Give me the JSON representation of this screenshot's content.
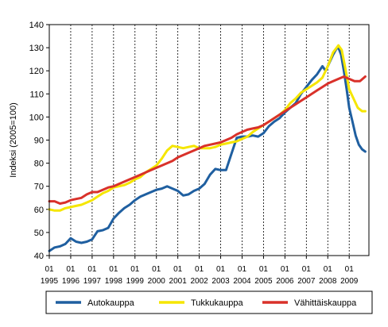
{
  "chart_data": {
    "type": "line",
    "title": "",
    "xlabel": "",
    "ylabel": "Indeksi (2005=100)",
    "ylim": [
      40,
      140
    ],
    "yticks": [
      40,
      50,
      60,
      70,
      80,
      90,
      100,
      110,
      120,
      130,
      140
    ],
    "xlim": [
      1995.0,
      2009.92
    ],
    "xticks": [
      {
        "x": 1995,
        "month": "01",
        "year": "1995"
      },
      {
        "x": 1996,
        "month": "01",
        "year": "1996"
      },
      {
        "x": 1997,
        "month": "01",
        "year": "1997"
      },
      {
        "x": 1998,
        "month": "01",
        "year": "1998"
      },
      {
        "x": 1999,
        "month": "01",
        "year": "1999"
      },
      {
        "x": 2000,
        "month": "01",
        "year": "2000"
      },
      {
        "x": 2001,
        "month": "01",
        "year": "2001"
      },
      {
        "x": 2002,
        "month": "01",
        "year": "2002"
      },
      {
        "x": 2003,
        "month": "01",
        "year": "2003"
      },
      {
        "x": 2004,
        "month": "01",
        "year": "2004"
      },
      {
        "x": 2005,
        "month": "01",
        "year": "2005"
      },
      {
        "x": 2006,
        "month": "01",
        "year": "2006"
      },
      {
        "x": 2007,
        "month": "01",
        "year": "2007"
      },
      {
        "x": 2008,
        "month": "01",
        "year": "2008"
      },
      {
        "x": 2009,
        "month": "01",
        "year": "2009"
      }
    ],
    "grid": "vertical dashed at each year",
    "legend_position": "bottom",
    "series": [
      {
        "name": "Autokauppa",
        "color": "#1f5fa0",
        "points": [
          [
            1995.0,
            42
          ],
          [
            1995.25,
            43.5
          ],
          [
            1995.5,
            44
          ],
          [
            1995.75,
            45
          ],
          [
            1996.0,
            47.5
          ],
          [
            1996.25,
            46
          ],
          [
            1996.5,
            45.5
          ],
          [
            1996.75,
            46
          ],
          [
            1997.0,
            47
          ],
          [
            1997.25,
            50.5
          ],
          [
            1997.5,
            51
          ],
          [
            1997.75,
            52
          ],
          [
            1998.0,
            56
          ],
          [
            1998.25,
            58.5
          ],
          [
            1998.5,
            60.5
          ],
          [
            1998.75,
            62
          ],
          [
            1999.0,
            64
          ],
          [
            1999.25,
            65.5
          ],
          [
            1999.5,
            66.5
          ],
          [
            1999.75,
            67.5
          ],
          [
            2000.0,
            68.5
          ],
          [
            2000.25,
            69
          ],
          [
            2000.5,
            70
          ],
          [
            2000.75,
            69
          ],
          [
            2001.0,
            68
          ],
          [
            2001.25,
            66
          ],
          [
            2001.5,
            66.5
          ],
          [
            2001.75,
            68
          ],
          [
            2002.0,
            69
          ],
          [
            2002.25,
            71
          ],
          [
            2002.5,
            75
          ],
          [
            2002.75,
            77.5
          ],
          [
            2003.0,
            77
          ],
          [
            2003.25,
            77
          ],
          [
            2003.5,
            84
          ],
          [
            2003.75,
            91
          ],
          [
            2004.0,
            91.5
          ],
          [
            2004.25,
            91.5
          ],
          [
            2004.5,
            92
          ],
          [
            2004.75,
            91.5
          ],
          [
            2005.0,
            93
          ],
          [
            2005.25,
            96
          ],
          [
            2005.5,
            98
          ],
          [
            2005.75,
            99.5
          ],
          [
            2006.0,
            102
          ],
          [
            2006.25,
            104
          ],
          [
            2006.5,
            106
          ],
          [
            2006.75,
            110
          ],
          [
            2007.0,
            113
          ],
          [
            2007.25,
            116
          ],
          [
            2007.5,
            118.5
          ],
          [
            2007.75,
            122
          ],
          [
            2007.9,
            120
          ],
          [
            2008.0,
            122
          ],
          [
            2008.25,
            127
          ],
          [
            2008.4,
            129.5
          ],
          [
            2008.5,
            130
          ],
          [
            2008.62,
            127
          ],
          [
            2008.75,
            120
          ],
          [
            2008.88,
            112
          ],
          [
            2009.0,
            104
          ],
          [
            2009.15,
            98
          ],
          [
            2009.3,
            92
          ],
          [
            2009.45,
            88
          ],
          [
            2009.6,
            86
          ],
          [
            2009.75,
            85
          ]
        ]
      },
      {
        "name": "Tukkukauppa",
        "color": "#f5e600",
        "points": [
          [
            1995.0,
            60
          ],
          [
            1995.25,
            59.5
          ],
          [
            1995.5,
            59.5
          ],
          [
            1995.75,
            60.5
          ],
          [
            1996.0,
            61
          ],
          [
            1996.25,
            61.5
          ],
          [
            1996.5,
            62
          ],
          [
            1996.75,
            63
          ],
          [
            1997.0,
            64
          ],
          [
            1997.25,
            65.5
          ],
          [
            1997.5,
            67
          ],
          [
            1997.75,
            68
          ],
          [
            1998.0,
            69.5
          ],
          [
            1998.25,
            70
          ],
          [
            1998.5,
            70.5
          ],
          [
            1998.75,
            71.5
          ],
          [
            1999.0,
            73
          ],
          [
            1999.25,
            74
          ],
          [
            1999.5,
            76
          ],
          [
            1999.75,
            77.5
          ],
          [
            2000.0,
            79
          ],
          [
            2000.25,
            82
          ],
          [
            2000.5,
            85.5
          ],
          [
            2000.75,
            87.5
          ],
          [
            2001.0,
            87
          ],
          [
            2001.25,
            86.5
          ],
          [
            2001.5,
            87
          ],
          [
            2001.75,
            87.5
          ],
          [
            2002.0,
            86.5
          ],
          [
            2002.25,
            86.5
          ],
          [
            2002.5,
            86.5
          ],
          [
            2002.75,
            87
          ],
          [
            2003.0,
            88
          ],
          [
            2003.25,
            88.5
          ],
          [
            2003.5,
            89
          ],
          [
            2003.75,
            89.5
          ],
          [
            2004.0,
            90.5
          ],
          [
            2004.25,
            91.5
          ],
          [
            2004.5,
            93.5
          ],
          [
            2004.75,
            95
          ],
          [
            2005.0,
            96.5
          ],
          [
            2005.25,
            98
          ],
          [
            2005.5,
            99.5
          ],
          [
            2005.75,
            101
          ],
          [
            2006.0,
            103
          ],
          [
            2006.25,
            106
          ],
          [
            2006.5,
            108
          ],
          [
            2006.75,
            110.5
          ],
          [
            2007.0,
            112
          ],
          [
            2007.25,
            113.5
          ],
          [
            2007.5,
            115
          ],
          [
            2007.75,
            117
          ],
          [
            2008.0,
            122
          ],
          [
            2008.25,
            128
          ],
          [
            2008.5,
            131
          ],
          [
            2008.65,
            129
          ],
          [
            2008.8,
            122
          ],
          [
            2009.0,
            112
          ],
          [
            2009.2,
            108
          ],
          [
            2009.4,
            104
          ],
          [
            2009.6,
            102.5
          ],
          [
            2009.75,
            102.5
          ]
        ]
      },
      {
        "name": "Vähittäiskauppa",
        "color": "#d9312a",
        "points": [
          [
            1995.0,
            63.5
          ],
          [
            1995.25,
            63.5
          ],
          [
            1995.5,
            62.5
          ],
          [
            1995.75,
            63
          ],
          [
            1996.0,
            64
          ],
          [
            1996.25,
            64.5
          ],
          [
            1996.5,
            65
          ],
          [
            1996.75,
            66.5
          ],
          [
            1997.0,
            67.5
          ],
          [
            1997.25,
            67.5
          ],
          [
            1997.5,
            68.5
          ],
          [
            1997.75,
            69.5
          ],
          [
            1998.0,
            70
          ],
          [
            1998.25,
            71
          ],
          [
            1998.5,
            72
          ],
          [
            1998.75,
            73
          ],
          [
            1999.0,
            74
          ],
          [
            1999.25,
            75
          ],
          [
            1999.5,
            76
          ],
          [
            1999.75,
            77
          ],
          [
            2000.0,
            78
          ],
          [
            2000.25,
            79
          ],
          [
            2000.5,
            80
          ],
          [
            2000.75,
            81
          ],
          [
            2001.0,
            82.5
          ],
          [
            2001.25,
            83.5
          ],
          [
            2001.5,
            84.5
          ],
          [
            2001.75,
            85.5
          ],
          [
            2002.0,
            86.5
          ],
          [
            2002.25,
            87.5
          ],
          [
            2002.5,
            88
          ],
          [
            2002.75,
            88.5
          ],
          [
            2003.0,
            89
          ],
          [
            2003.25,
            90
          ],
          [
            2003.5,
            91
          ],
          [
            2003.75,
            92.5
          ],
          [
            2004.0,
            93.5
          ],
          [
            2004.25,
            94.5
          ],
          [
            2004.5,
            95
          ],
          [
            2004.75,
            95.5
          ],
          [
            2005.0,
            96.5
          ],
          [
            2005.25,
            98
          ],
          [
            2005.5,
            99.5
          ],
          [
            2005.75,
            101
          ],
          [
            2006.0,
            102.5
          ],
          [
            2006.25,
            104
          ],
          [
            2006.5,
            105.5
          ],
          [
            2006.75,
            107
          ],
          [
            2007.0,
            108.5
          ],
          [
            2007.25,
            110
          ],
          [
            2007.5,
            111.5
          ],
          [
            2007.75,
            113
          ],
          [
            2008.0,
            114.5
          ],
          [
            2008.25,
            115.5
          ],
          [
            2008.5,
            116.5
          ],
          [
            2008.75,
            117.5
          ],
          [
            2009.0,
            116.5
          ],
          [
            2009.25,
            115.5
          ],
          [
            2009.5,
            115.5
          ],
          [
            2009.75,
            117.5
          ]
        ]
      }
    ]
  }
}
